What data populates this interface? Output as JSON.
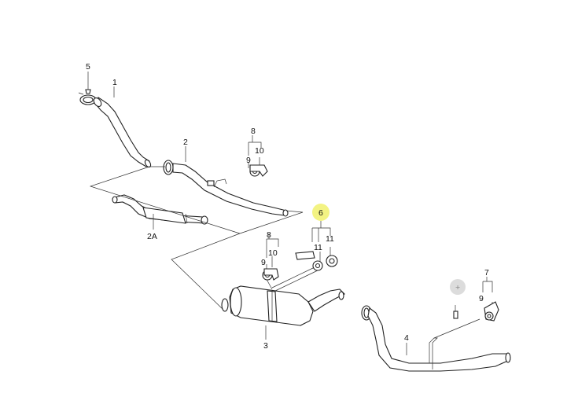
{
  "labels": {
    "n1": "1",
    "n2": "2",
    "n2a": "2A",
    "n3": "3",
    "n4": "4",
    "n5": "5",
    "n6": "6",
    "n7": "7",
    "n8a": "8",
    "n8b": "8",
    "n9a": "9",
    "n9b": "9",
    "n9c": "9",
    "n10a": "10",
    "n10b": "10",
    "n11a": "11",
    "n11b": "11",
    "plus": "+"
  },
  "colors": {
    "highlight": "#f3f383",
    "inactive_marker": "#dcdcdc",
    "stroke": "#222222"
  }
}
